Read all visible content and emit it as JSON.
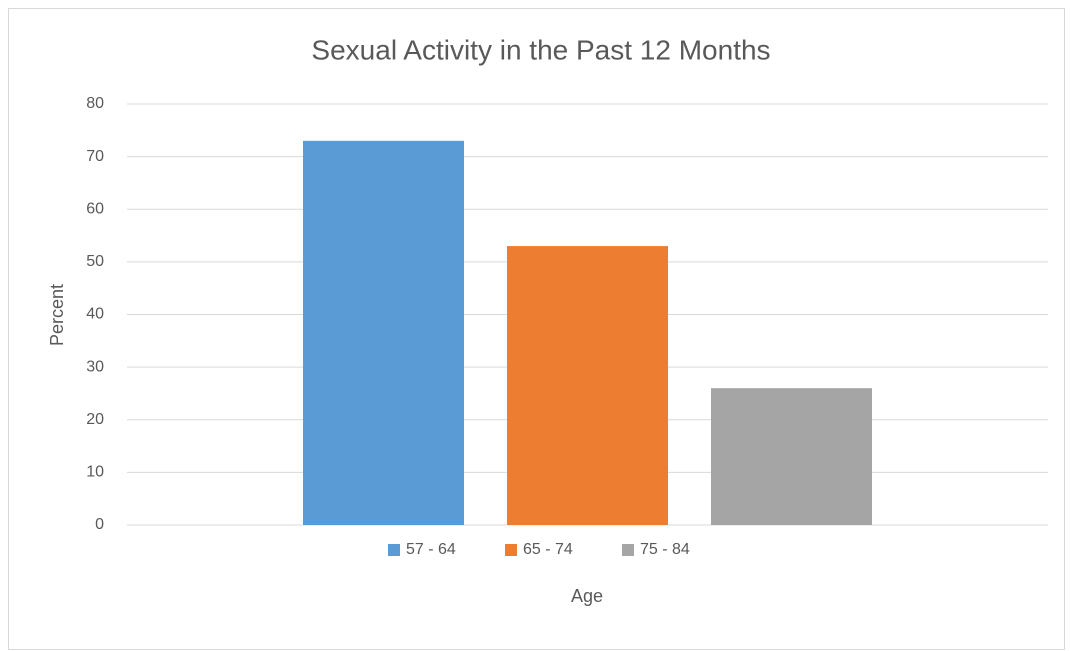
{
  "chart_data": {
    "type": "bar",
    "title": "Sexual Activity in the Past 12 Months",
    "xlabel": "Age",
    "ylabel": "Percent",
    "categories": [
      null
    ],
    "series": [
      {
        "name": "57 - 64",
        "color": "#5b9bd5",
        "values": [
          73
        ]
      },
      {
        "name": "65 - 74",
        "color": "#ed7d31",
        "values": [
          53
        ]
      },
      {
        "name": "75 - 84",
        "color": "#a5a5a5",
        "values": [
          26
        ]
      }
    ],
    "ylim": [
      0,
      80
    ],
    "yticks": [
      0,
      10,
      20,
      30,
      40,
      50,
      60,
      70,
      80
    ],
    "grid": true,
    "legend": "bottom"
  }
}
